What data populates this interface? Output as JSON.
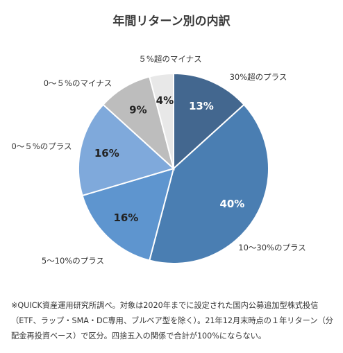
{
  "chart_data": {
    "type": "pie",
    "title": "年間リターン別の内訳",
    "categories": [
      "30%超のプラス",
      "10～30%のプラス",
      "5～10%のプラス",
      "0～5%のプラス",
      "0～5%のマイナス",
      "5%超のマイナス"
    ],
    "category_labels": [
      "30%超のプラス",
      "10～30%のプラス",
      "5～10%のプラス",
      "0～５%のプラス",
      "0～５%のマイナス",
      "５%超のマイナス"
    ],
    "values": [
      13,
      40,
      16,
      16,
      9,
      4
    ],
    "data_labels": [
      "13%",
      "40%",
      "16%",
      "16%",
      "9%",
      "4%"
    ],
    "colors": [
      "#43678f",
      "#4a7eb2",
      "#5e95cf",
      "#7fa9db",
      "#bdbdbd",
      "#e8e8e8"
    ],
    "label_colors": [
      "#ffffff",
      "#ffffff",
      "#222222",
      "#222222",
      "#222222",
      "#222222"
    ]
  },
  "footnote": "※QUICK資産運用研究所調べ。対象は2020年までに設定された国内公募追加型株式投信（ETF、ラップ・SMA・DC専用、ブルベア型を除く）。21年12月末時点の１年リターン（分配金再投資ベース）で区分。四捨五入の関係で合計が100%にならない。"
}
